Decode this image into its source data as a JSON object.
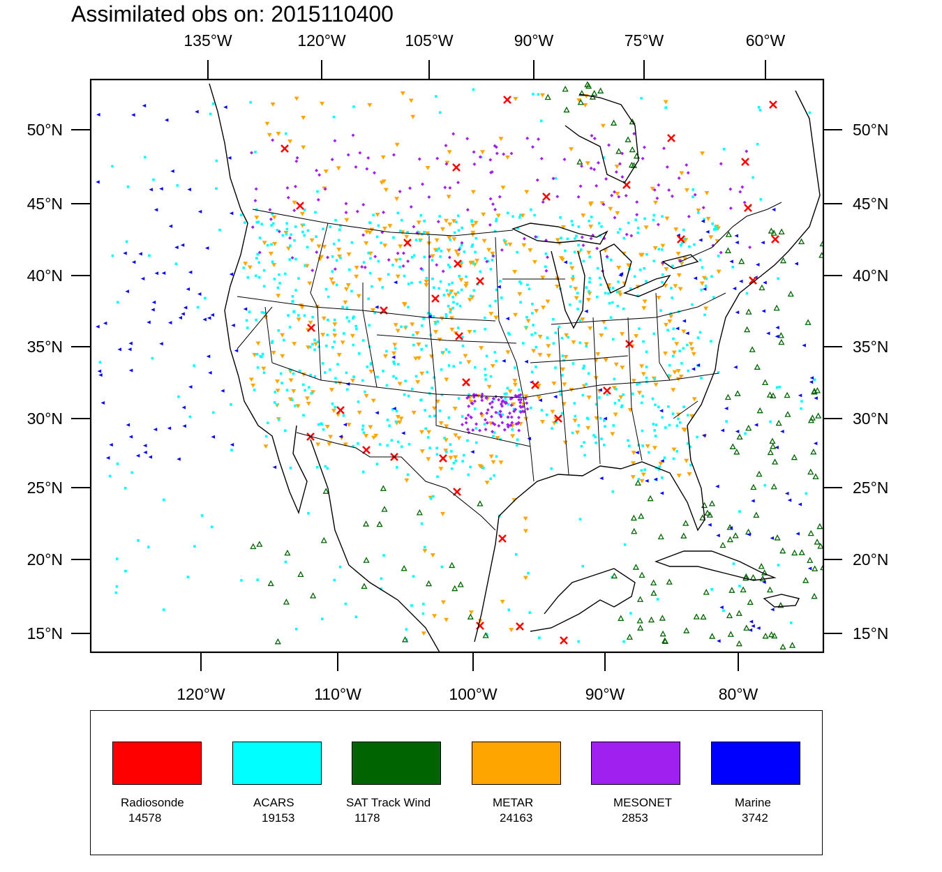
{
  "title": "Assimilated obs on: 2015110400",
  "top_axis_labels": [
    "135°W",
    "120°W",
    "105°W",
    "90°W",
    "75°W",
    "60°W"
  ],
  "bottom_axis_labels": [
    "120°W",
    "110°W",
    "100°W",
    "90°W",
    "80°W"
  ],
  "left_axis_labels": [
    "50°N",
    "45°N",
    "40°N",
    "35°N",
    "30°N",
    "25°N",
    "20°N",
    "15°N"
  ],
  "right_axis_labels": [
    "50°N",
    "45°N",
    "40°N",
    "35°N",
    "30°N",
    "25°N",
    "20°N",
    "15°N"
  ],
  "legend": [
    {
      "name": "Radiosonde",
      "count": "14578",
      "color": "#ff0000",
      "marker": "x-cross"
    },
    {
      "name": "ACARS",
      "count": "19153",
      "color": "#00ffff",
      "marker": "square-dot"
    },
    {
      "name": "SAT Track Wind",
      "count": "1178",
      "color": "#006400",
      "marker": "open-triangle"
    },
    {
      "name": "METAR",
      "count": "24163",
      "color": "#ffa500",
      "marker": "down-triangle"
    },
    {
      "name": "MESONET",
      "count": "2853",
      "color": "#a020f0",
      "marker": "diamond"
    },
    {
      "name": "Marine",
      "count": "3742",
      "color": "#0000ff",
      "marker": "left-triangle"
    }
  ]
}
